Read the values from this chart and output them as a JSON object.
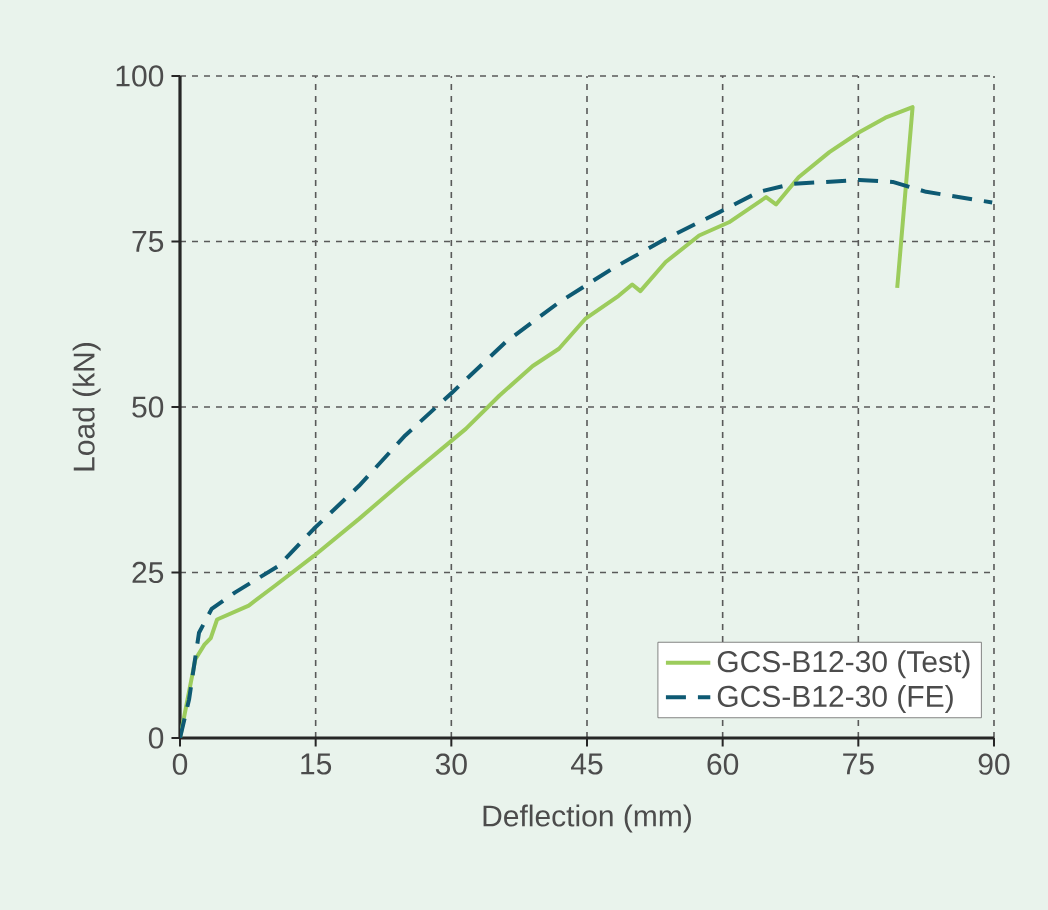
{
  "chart_data": {
    "type": "line",
    "xlabel": "Deflection (mm)",
    "ylabel": "Load (kN)",
    "xlim": [
      0,
      90
    ],
    "ylim": [
      0,
      100
    ],
    "xticks": [
      0,
      15,
      30,
      45,
      60,
      75,
      90
    ],
    "yticks": [
      0,
      25,
      50,
      75,
      100
    ],
    "grid": true,
    "legend": "bottom right",
    "series": [
      {
        "name": "GCS-B12-30 (Test)",
        "color": "#9ccc5c",
        "line_style": "solid",
        "x": [
          0,
          1.7,
          2.7,
          3.4,
          4.1,
          7.6,
          10.5,
          14.8,
          19.8,
          24.9,
          31.6,
          35.3,
          39.0,
          41.9,
          44.8,
          48.5,
          50.0,
          50.9,
          53.7,
          57.4,
          60.7,
          64.8,
          65.9,
          68.4,
          71.8,
          75.1,
          78.0,
          81.0,
          79.3
        ],
        "values": [
          0,
          11.9,
          14.1,
          15.1,
          17.9,
          20.0,
          23.0,
          27.5,
          33.1,
          39.1,
          46.7,
          51.7,
          56.2,
          58.8,
          63.3,
          66.8,
          68.5,
          67.5,
          71.9,
          75.9,
          77.9,
          81.7,
          80.6,
          84.7,
          88.5,
          91.5,
          93.7,
          95.3,
          68.0
        ]
      },
      {
        "name": "GCS-B12-30 (FE)",
        "color": "#0e5a73",
        "line_style": "dashed",
        "x": [
          0,
          1.0,
          2.1,
          3.5,
          6.1,
          10.9,
          14.8,
          19.8,
          24.9,
          30.1,
          36.0,
          41.9,
          47.8,
          53.7,
          59.6,
          64.0,
          67.7,
          75.1,
          78.8,
          82.5,
          89.8
        ],
        "values": [
          0,
          5.8,
          15.9,
          19.5,
          22.0,
          26.0,
          31.6,
          38.1,
          45.7,
          52.2,
          59.8,
          65.8,
          70.9,
          75.4,
          79.4,
          82.5,
          83.7,
          84.3,
          84.0,
          82.5,
          80.9
        ]
      }
    ]
  }
}
